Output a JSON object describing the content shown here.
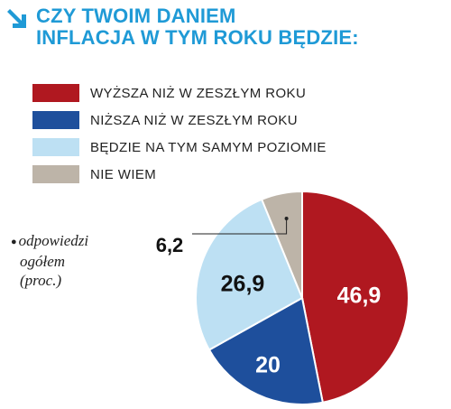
{
  "header": {
    "title_line1": "CZY TWOIM DANIEM",
    "title_line2": "INFLACJA W TYM ROKU BĘDZIE:"
  },
  "note": {
    "line1": "odpowiedzi",
    "line2": "ogółem",
    "line3": "(proc.)"
  },
  "colors": {
    "title": "#1f9ad6",
    "higher": "#b01820",
    "lower": "#1e4f9c",
    "same": "#bde0f3",
    "dont_know": "#bdb4a8"
  },
  "chart_data": {
    "type": "pie",
    "title": "CZY TWOIM DANIEM INFLACJA W TYM ROKU BĘDZIE:",
    "unit": "proc.",
    "start": "12 o'clock",
    "direction": "clockwise",
    "slices": [
      {
        "label": "WYŻSZA NIŻ W ZESZŁYM ROKU",
        "value": 46.9,
        "display": "46,9",
        "color": "#b01820",
        "label_color": "#ffffff"
      },
      {
        "label": "NIŻSZA NIŻ W ZESZŁYM ROKU",
        "value": 20,
        "display": "20",
        "color": "#1e4f9c",
        "label_color": "#ffffff"
      },
      {
        "label": "BĘDZIE NA TYM SAMYM POZIOMIE",
        "value": 26.9,
        "display": "26,9",
        "color": "#bde0f3",
        "label_color": "#111111"
      },
      {
        "label": "NIE WIEM",
        "value": 6.2,
        "display": "6,2",
        "color": "#bdb4a8",
        "label_color": "#111111"
      }
    ]
  }
}
